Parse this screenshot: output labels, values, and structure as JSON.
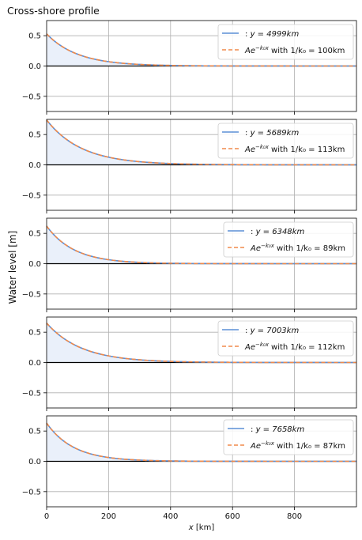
{
  "figure": {
    "title": "Cross-shore profile",
    "ylabel": "Water level [m]",
    "xlabel": "x [km]"
  },
  "colors": {
    "solid_line": "#5b8fd6",
    "dashed_line": "#f08a4b",
    "fill": "#eaf0fa",
    "grid": "#b0b0b0",
    "zero_line": "#000000"
  },
  "chart_data": [
    {
      "type": "line",
      "x_range": [
        0,
        1000
      ],
      "ylim": [
        -0.75,
        0.75
      ],
      "yticks": [
        "0.5",
        "0.0",
        "−0.5"
      ],
      "xticks": [
        "0",
        "200",
        "400",
        "600",
        "800"
      ],
      "grid": true,
      "legend_position": "upper-right",
      "series": [
        {
          "name": ": y = 4999km",
          "style": "solid",
          "amplitude": 0.53,
          "decay_length_km": 100
        },
        {
          "name": "Ae^{-k0 x} with 1/k0 = 100km",
          "style": "dashed",
          "amplitude": 0.53,
          "decay_length_km": 100
        }
      ],
      "legend": [
        {
          "prefix": ": ",
          "label": "y = 4999km"
        },
        {
          "prefix": "Ae",
          "sup": "−k₀x",
          "mid": " with 1/k₀ = ",
          "value": "100km"
        }
      ]
    },
    {
      "type": "line",
      "x_range": [
        0,
        1000
      ],
      "ylim": [
        -0.75,
        0.75
      ],
      "yticks": [
        "0.5",
        "0.0",
        "−0.5"
      ],
      "xticks": [
        "0",
        "200",
        "400",
        "600",
        "800"
      ],
      "grid": true,
      "legend_position": "upper-right",
      "series": [
        {
          "name": ": y = 5689km",
          "style": "solid",
          "amplitude": 0.74,
          "decay_length_km": 113
        },
        {
          "name": "Ae^{-k0 x} with 1/k0 = 113km",
          "style": "dashed",
          "amplitude": 0.74,
          "decay_length_km": 113
        }
      ],
      "legend": [
        {
          "prefix": ": ",
          "label": "y = 5689km"
        },
        {
          "prefix": "Ae",
          "sup": "−k₀x",
          "mid": " with 1/k₀ = ",
          "value": "113km"
        }
      ]
    },
    {
      "type": "line",
      "x_range": [
        0,
        1000
      ],
      "ylim": [
        -0.75,
        0.75
      ],
      "yticks": [
        "0.5",
        "0.0",
        "−0.5"
      ],
      "xticks": [
        "0",
        "200",
        "400",
        "600",
        "800"
      ],
      "grid": true,
      "legend_position": "upper-right",
      "series": [
        {
          "name": ": y = 6348km",
          "style": "solid",
          "amplitude": 0.62,
          "decay_length_km": 89
        },
        {
          "name": "Ae^{-k0 x} with 1/k0 = 89km",
          "style": "dashed",
          "amplitude": 0.62,
          "decay_length_km": 89
        }
      ],
      "legend": [
        {
          "prefix": ": ",
          "label": "y = 6348km"
        },
        {
          "prefix": "Ae",
          "sup": "−k₀x",
          "mid": " with 1/k₀ = ",
          "value": "89km"
        }
      ]
    },
    {
      "type": "line",
      "x_range": [
        0,
        1000
      ],
      "ylim": [
        -0.75,
        0.75
      ],
      "yticks": [
        "0.5",
        "0.0",
        "−0.5"
      ],
      "xticks": [
        "0",
        "200",
        "400",
        "600",
        "800"
      ],
      "grid": true,
      "legend_position": "upper-right",
      "series": [
        {
          "name": ": y = 7003km",
          "style": "solid",
          "amplitude": 0.65,
          "decay_length_km": 112
        },
        {
          "name": "Ae^{-k0 x} with 1/k0 = 112km",
          "style": "dashed",
          "amplitude": 0.65,
          "decay_length_km": 112
        }
      ],
      "legend": [
        {
          "prefix": ": ",
          "label": "y = 7003km"
        },
        {
          "prefix": "Ae",
          "sup": "−k₀x",
          "mid": " with 1/k₀ = ",
          "value": "112km"
        }
      ]
    },
    {
      "type": "line",
      "x_range": [
        0,
        1000
      ],
      "ylim": [
        -0.75,
        0.75
      ],
      "yticks": [
        "0.5",
        "0.0",
        "−0.5"
      ],
      "xticks": [
        "0",
        "200",
        "400",
        "600",
        "800"
      ],
      "grid": true,
      "legend_position": "upper-right",
      "series": [
        {
          "name": ": y = 7658km",
          "style": "solid",
          "amplitude": 0.63,
          "decay_length_km": 87
        },
        {
          "name": "Ae^{-k0 x} with 1/k0 = 87km",
          "style": "dashed",
          "amplitude": 0.63,
          "decay_length_km": 87
        }
      ],
      "legend": [
        {
          "prefix": ": ",
          "label": "y = 7658km"
        },
        {
          "prefix": "Ae",
          "sup": "−k₀x",
          "mid": " with 1/k₀ = ",
          "value": "87km"
        }
      ]
    }
  ]
}
